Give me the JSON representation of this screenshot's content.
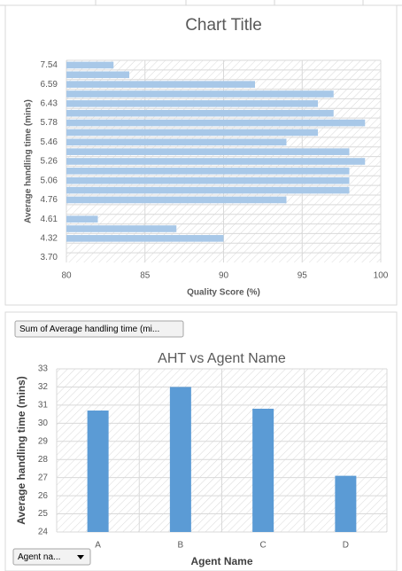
{
  "chart_data": [
    {
      "type": "hbar",
      "title": "Chart Title",
      "x_label": "Quality Score (%)",
      "y_label": "Average handling time (mins)",
      "categories": [
        "7.54",
        null,
        "6.59",
        null,
        "6.43",
        null,
        "5.78",
        null,
        "5.46",
        null,
        "5.26",
        null,
        "5.06",
        null,
        "4.76",
        null,
        "4.61",
        null,
        "4.32",
        null,
        "3.70"
      ],
      "values": [
        83,
        84,
        92,
        97,
        96,
        97,
        99,
        96,
        94,
        98,
        99,
        98,
        98,
        98,
        94,
        null,
        82,
        87,
        90,
        null,
        null
      ],
      "color": "#a8c8e8",
      "xlim": [
        80,
        100
      ],
      "xticks": [
        80,
        85,
        90,
        95,
        100
      ],
      "grid": true
    },
    {
      "type": "bar",
      "title": "AHT vs Agent Name",
      "x_label": "Agent Name",
      "y_label": "Average handling time (mins)",
      "categories": [
        "A",
        "B",
        "C",
        "D"
      ],
      "values": [
        30.7,
        32.0,
        30.8,
        27.1
      ],
      "color": "#5b9bd5",
      "ylim": [
        24,
        33
      ],
      "yticks": [
        24,
        25,
        26,
        27,
        28,
        29,
        30,
        31,
        32,
        33
      ],
      "grid": true
    }
  ],
  "controls": {
    "value_field_button": "Sum of Average handling time (mi...",
    "axis_field_button": "Agent na..."
  }
}
